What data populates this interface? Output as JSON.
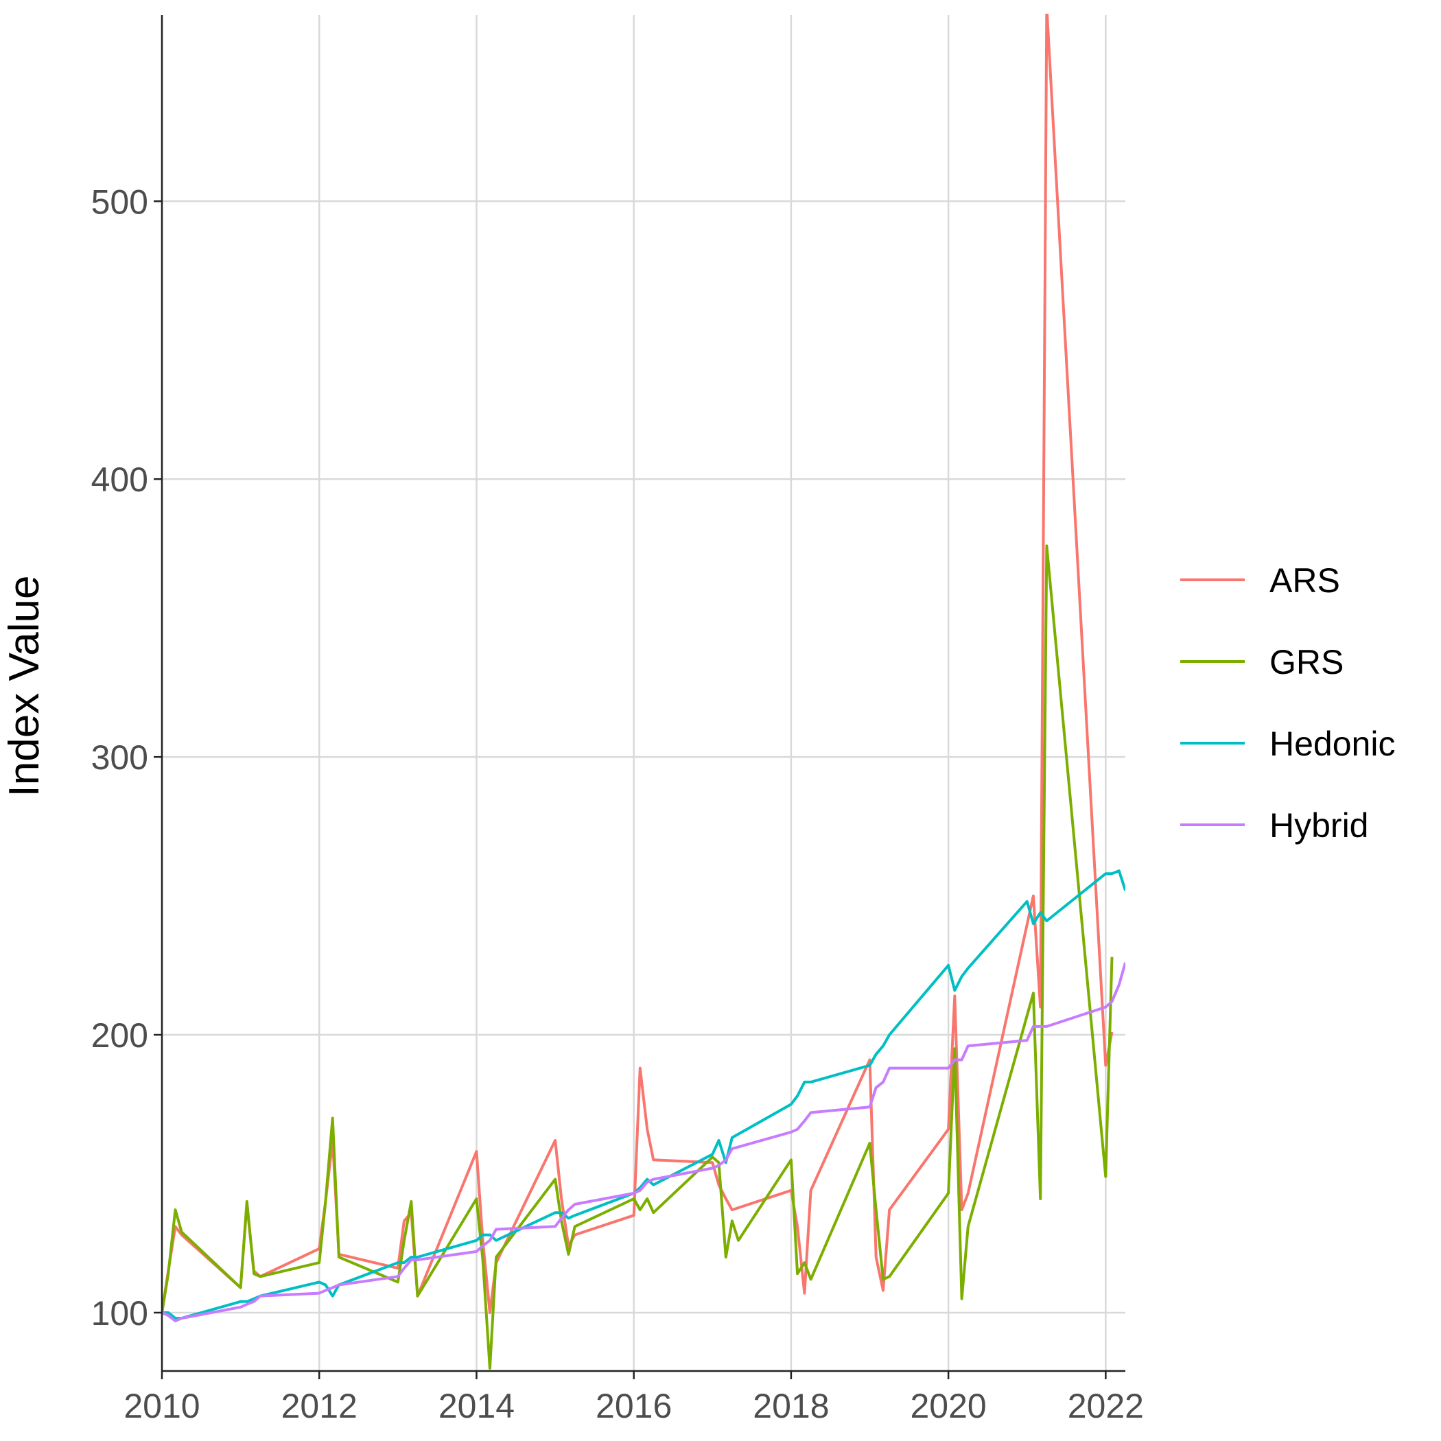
{
  "chart_data": {
    "type": "line",
    "title": "",
    "xlabel": "",
    "ylabel": "Index Value",
    "xlim": [
      2010,
      2022.25
    ],
    "ylim": [
      79,
      567
    ],
    "grid": true,
    "legend_position": "right",
    "x_ticks": [
      {
        "value": 2010,
        "label": "2010"
      },
      {
        "value": 2012,
        "label": "2012"
      },
      {
        "value": 2014,
        "label": "2014"
      },
      {
        "value": 2016,
        "label": "2016"
      },
      {
        "value": 2018,
        "label": "2018"
      },
      {
        "value": 2020,
        "label": "2020"
      },
      {
        "value": 2022,
        "label": "2022"
      }
    ],
    "y_ticks": [
      {
        "value": 100,
        "label": "100"
      },
      {
        "value": 200,
        "label": "200"
      },
      {
        "value": 300,
        "label": "300"
      },
      {
        "value": 400,
        "label": "400"
      },
      {
        "value": 500,
        "label": "500"
      }
    ],
    "series": [
      {
        "name": "ARS",
        "color": "#F8766D",
        "points": [
          [
            2010.0,
            100
          ],
          [
            2010.08,
            115
          ],
          [
            2010.17,
            131
          ],
          [
            2010.25,
            128
          ],
          [
            2011.0,
            109
          ],
          [
            2011.08,
            139
          ],
          [
            2011.17,
            115
          ],
          [
            2011.25,
            113
          ],
          [
            2012.0,
            123
          ],
          [
            2012.08,
            140
          ],
          [
            2012.17,
            162
          ],
          [
            2012.25,
            121
          ],
          [
            2013.0,
            116
          ],
          [
            2013.08,
            133
          ],
          [
            2013.17,
            136
          ],
          [
            2013.25,
            106
          ],
          [
            2014.0,
            158
          ],
          [
            2014.08,
            126
          ],
          [
            2014.17,
            100
          ],
          [
            2014.25,
            118
          ],
          [
            2015.0,
            162
          ],
          [
            2015.08,
            141
          ],
          [
            2015.17,
            124
          ],
          [
            2015.25,
            128
          ],
          [
            2016.0,
            135
          ],
          [
            2016.08,
            188
          ],
          [
            2016.17,
            166
          ],
          [
            2016.25,
            155
          ],
          [
            2017.0,
            154
          ],
          [
            2017.08,
            146
          ],
          [
            2017.17,
            141
          ],
          [
            2017.25,
            137
          ],
          [
            2018.0,
            144
          ],
          [
            2018.08,
            131
          ],
          [
            2018.17,
            107
          ],
          [
            2018.25,
            144
          ],
          [
            2019.0,
            191
          ],
          [
            2019.08,
            120
          ],
          [
            2019.17,
            108
          ],
          [
            2019.25,
            137
          ],
          [
            2020.0,
            166
          ],
          [
            2020.08,
            214
          ],
          [
            2020.17,
            137
          ],
          [
            2020.25,
            143
          ],
          [
            2021.08,
            250
          ],
          [
            2021.17,
            210
          ],
          [
            2021.25,
            570
          ],
          [
            2022.0,
            189
          ],
          [
            2022.08,
            201
          ]
        ]
      },
      {
        "name": "GRS",
        "color": "#7CAE00",
        "points": [
          [
            2010.0,
            100
          ],
          [
            2010.08,
            114
          ],
          [
            2010.17,
            137
          ],
          [
            2010.25,
            129
          ],
          [
            2011.0,
            109
          ],
          [
            2011.08,
            140
          ],
          [
            2011.17,
            114
          ],
          [
            2011.25,
            113
          ],
          [
            2012.0,
            118
          ],
          [
            2012.08,
            140
          ],
          [
            2012.17,
            170
          ],
          [
            2012.25,
            120
          ],
          [
            2013.0,
            111
          ],
          [
            2013.08,
            126
          ],
          [
            2013.17,
            140
          ],
          [
            2013.25,
            106
          ],
          [
            2014.0,
            141
          ],
          [
            2014.08,
            119
          ],
          [
            2014.17,
            80
          ],
          [
            2014.25,
            120
          ],
          [
            2015.0,
            148
          ],
          [
            2015.08,
            133
          ],
          [
            2015.17,
            121
          ],
          [
            2015.25,
            131
          ],
          [
            2016.0,
            141
          ],
          [
            2016.08,
            137
          ],
          [
            2016.17,
            141
          ],
          [
            2016.25,
            136
          ],
          [
            2017.0,
            156
          ],
          [
            2017.08,
            154
          ],
          [
            2017.17,
            120
          ],
          [
            2017.25,
            133
          ],
          [
            2017.33,
            126
          ],
          [
            2018.0,
            155
          ],
          [
            2018.08,
            114
          ],
          [
            2018.17,
            118
          ],
          [
            2018.25,
            112
          ],
          [
            2019.0,
            161
          ],
          [
            2019.08,
            137
          ],
          [
            2019.17,
            112
          ],
          [
            2019.25,
            113
          ],
          [
            2020.0,
            143
          ],
          [
            2020.08,
            195
          ],
          [
            2020.17,
            105
          ],
          [
            2020.25,
            131
          ],
          [
            2021.08,
            215
          ],
          [
            2021.17,
            141
          ],
          [
            2021.25,
            376
          ],
          [
            2022.0,
            149
          ],
          [
            2022.08,
            228
          ]
        ]
      },
      {
        "name": "Hedonic",
        "color": "#00BFC4",
        "points": [
          [
            2010.0,
            100
          ],
          [
            2010.08,
            100
          ],
          [
            2010.17,
            98
          ],
          [
            2010.25,
            98
          ],
          [
            2011.0,
            104
          ],
          [
            2011.08,
            104
          ],
          [
            2011.17,
            105
          ],
          [
            2011.25,
            106
          ],
          [
            2012.0,
            111
          ],
          [
            2012.08,
            110
          ],
          [
            2012.17,
            106
          ],
          [
            2012.25,
            110
          ],
          [
            2013.0,
            118
          ],
          [
            2013.08,
            118
          ],
          [
            2013.17,
            120
          ],
          [
            2013.25,
            120
          ],
          [
            2014.0,
            126
          ],
          [
            2014.08,
            128
          ],
          [
            2014.17,
            128
          ],
          [
            2014.25,
            126
          ],
          [
            2015.0,
            136
          ],
          [
            2015.08,
            136
          ],
          [
            2015.17,
            134
          ],
          [
            2015.25,
            135
          ],
          [
            2016.0,
            143
          ],
          [
            2016.08,
            145
          ],
          [
            2016.17,
            148
          ],
          [
            2016.25,
            146
          ],
          [
            2017.0,
            157
          ],
          [
            2017.08,
            162
          ],
          [
            2017.17,
            154
          ],
          [
            2017.25,
            163
          ],
          [
            2018.0,
            175
          ],
          [
            2018.08,
            178
          ],
          [
            2018.17,
            183
          ],
          [
            2018.25,
            183
          ],
          [
            2019.0,
            189
          ],
          [
            2019.08,
            193
          ],
          [
            2019.17,
            196
          ],
          [
            2019.25,
            200
          ],
          [
            2020.0,
            225
          ],
          [
            2020.08,
            216
          ],
          [
            2020.17,
            221
          ],
          [
            2020.25,
            224
          ],
          [
            2021.0,
            248
          ],
          [
            2021.08,
            240
          ],
          [
            2021.17,
            244
          ],
          [
            2021.25,
            241
          ],
          [
            2022.0,
            258
          ],
          [
            2022.08,
            258
          ],
          [
            2022.17,
            259
          ],
          [
            2022.25,
            252
          ]
        ]
      },
      {
        "name": "Hybrid",
        "color": "#C77CFF",
        "points": [
          [
            2010.0,
            100
          ],
          [
            2010.08,
            99
          ],
          [
            2010.17,
            97
          ],
          [
            2010.25,
            98
          ],
          [
            2011.0,
            102
          ],
          [
            2011.08,
            103
          ],
          [
            2011.17,
            104
          ],
          [
            2011.25,
            106
          ],
          [
            2012.0,
            107
          ],
          [
            2012.08,
            108
          ],
          [
            2012.17,
            109
          ],
          [
            2012.25,
            110
          ],
          [
            2013.0,
            113
          ],
          [
            2013.08,
            116
          ],
          [
            2013.17,
            119
          ],
          [
            2013.25,
            119
          ],
          [
            2014.0,
            122
          ],
          [
            2014.08,
            124
          ],
          [
            2014.17,
            126
          ],
          [
            2014.25,
            130
          ],
          [
            2015.0,
            131
          ],
          [
            2015.08,
            134
          ],
          [
            2015.17,
            137
          ],
          [
            2015.25,
            139
          ],
          [
            2016.0,
            143
          ],
          [
            2016.08,
            144
          ],
          [
            2016.17,
            147
          ],
          [
            2016.25,
            148
          ],
          [
            2017.0,
            152
          ],
          [
            2017.08,
            153
          ],
          [
            2017.17,
            155
          ],
          [
            2017.25,
            159
          ],
          [
            2018.0,
            165
          ],
          [
            2018.08,
            166
          ],
          [
            2018.17,
            169
          ],
          [
            2018.25,
            172
          ],
          [
            2019.0,
            174
          ],
          [
            2019.08,
            181
          ],
          [
            2019.17,
            183
          ],
          [
            2019.25,
            188
          ],
          [
            2020.0,
            188
          ],
          [
            2020.08,
            191
          ],
          [
            2020.17,
            191
          ],
          [
            2020.25,
            196
          ],
          [
            2021.0,
            198
          ],
          [
            2021.08,
            203
          ],
          [
            2021.17,
            203
          ],
          [
            2021.25,
            203
          ],
          [
            2022.0,
            210
          ],
          [
            2022.08,
            212
          ],
          [
            2022.17,
            218
          ],
          [
            2022.25,
            226
          ]
        ]
      }
    ]
  }
}
